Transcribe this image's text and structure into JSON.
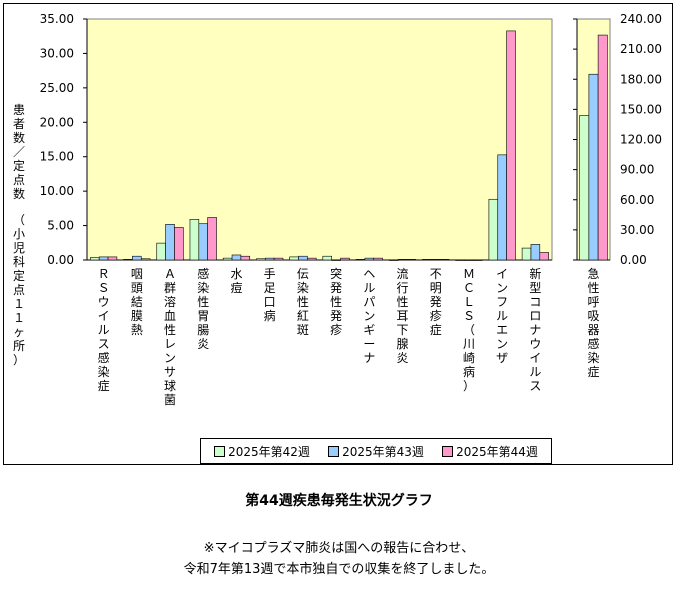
{
  "chart_data": [
    {
      "type": "bar",
      "ylabel_upper": "患者数／定点数",
      "ylabel_lower": "（小児科定点１１ヶ所）",
      "ylim": [
        0,
        35
      ],
      "yticks": [
        "0.00",
        "5.00",
        "10.00",
        "15.00",
        "20.00",
        "25.00",
        "30.00",
        "35.00"
      ],
      "categories": [
        "ＲＳウイルス感染症",
        "咽頭結膜熱",
        "Ａ群溶血性レンサ球菌",
        "感染性胃腸炎",
        "水痘",
        "手足口病",
        "伝染性紅斑",
        "突発性発疹",
        "ヘルパンギーナ",
        "流行性耳下腺炎",
        "不明発疹症",
        "ＭＣＬＳ（川崎病）",
        "インフルエンザ",
        "新型コロナウイルス"
      ],
      "series": [
        {
          "name": "2025年第42週",
          "values": [
            0.36,
            0.09,
            2.45,
            5.91,
            0.27,
            0.18,
            0.45,
            0.55,
            0.09,
            0.0,
            0.09,
            0.0,
            8.82,
            1.73
          ]
        },
        {
          "name": "2025年第43週",
          "values": [
            0.45,
            0.55,
            5.18,
            5.27,
            0.73,
            0.27,
            0.55,
            0.0,
            0.27,
            0.09,
            0.09,
            0.0,
            15.27,
            2.27
          ]
        },
        {
          "name": "2025年第44週",
          "values": [
            0.45,
            0.18,
            4.73,
            6.18,
            0.55,
            0.27,
            0.27,
            0.27,
            0.27,
            0.09,
            0.09,
            0.0,
            33.27,
            1.09
          ]
        }
      ]
    },
    {
      "type": "bar",
      "ylim": [
        0,
        240
      ],
      "yticks": [
        "0.00",
        "30.00",
        "60.00",
        "90.00",
        "120.00",
        "150.00",
        "180.00",
        "210.00",
        "240.00"
      ],
      "categories": [
        "急性呼吸器感染症"
      ],
      "series": [
        {
          "name": "2025年第42週",
          "values": [
            144
          ]
        },
        {
          "name": "2025年第43週",
          "values": [
            185
          ]
        },
        {
          "name": "2025年第44週",
          "values": [
            224
          ]
        }
      ]
    }
  ],
  "colors": {
    "plot_bg": "#FFFFC0",
    "series": [
      "#CCFFCC",
      "#99CCFF",
      "#FF99CC"
    ]
  },
  "legend": [
    "2025年第42週",
    "2025年第43週",
    "2025年第44週"
  ],
  "caption": "第44週疾患毎発生状況グラフ",
  "notes": [
    "※マイコプラズマ肺炎は国への報告に合わせ、",
    "令和7年第13週で本市独自での収集を終了しました。"
  ]
}
